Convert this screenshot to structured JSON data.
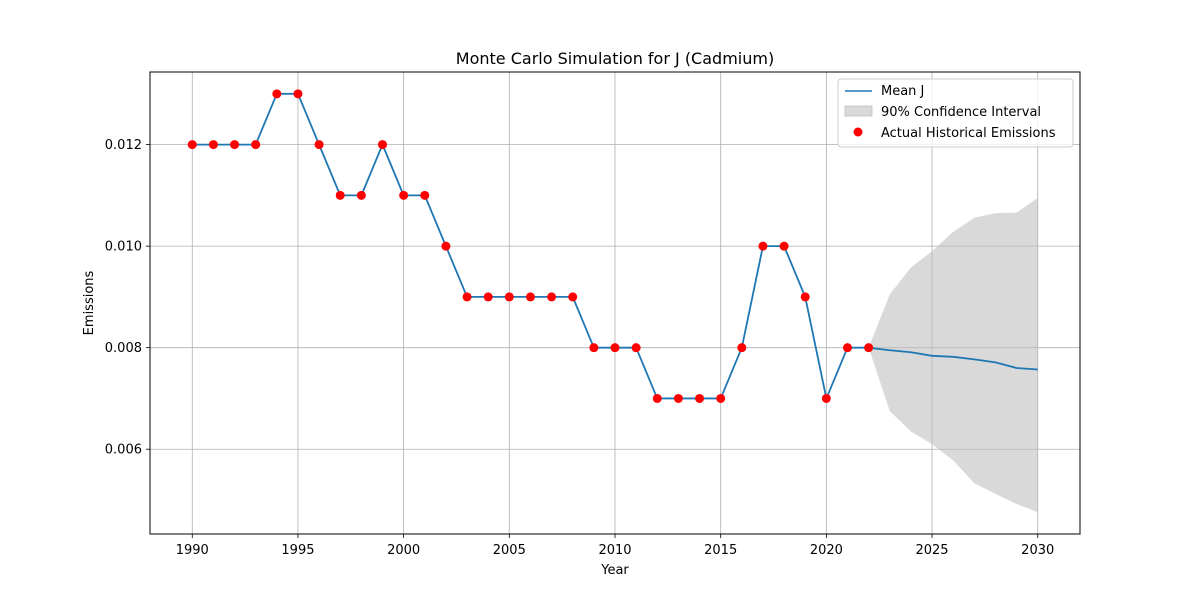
{
  "chart_data": {
    "type": "line",
    "title": "Monte Carlo Simulation for J (Cadmium)",
    "xlabel": "Year",
    "ylabel": "Emissions",
    "xlim": [
      1988,
      2032
    ],
    "ylim": [
      0.00433,
      0.01343
    ],
    "x_ticks": [
      1990,
      1995,
      2000,
      2005,
      2010,
      2015,
      2020,
      2025,
      2030
    ],
    "x_tick_labels": [
      "1990",
      "1995",
      "2000",
      "2005",
      "2010",
      "2015",
      "2020",
      "2025",
      "2030"
    ],
    "y_ticks": [
      0.006,
      0.008,
      0.01,
      0.012
    ],
    "y_tick_labels": [
      "0.006",
      "0.008",
      "0.010",
      "0.012"
    ],
    "grid": true,
    "legend_position": "top-right",
    "series": [
      {
        "name": "Mean J",
        "kind": "line",
        "color": "#1f77b4",
        "x": [
          1990,
          1991,
          1992,
          1993,
          1994,
          1995,
          1996,
          1997,
          1998,
          1999,
          2000,
          2001,
          2002,
          2003,
          2004,
          2005,
          2006,
          2007,
          2008,
          2009,
          2010,
          2011,
          2012,
          2013,
          2014,
          2015,
          2016,
          2017,
          2018,
          2019,
          2020,
          2021,
          2022,
          2023,
          2024,
          2025,
          2026,
          2027,
          2028,
          2029,
          2030
        ],
        "values": [
          0.012,
          0.012,
          0.012,
          0.012,
          0.013,
          0.013,
          0.012,
          0.011,
          0.011,
          0.012,
          0.011,
          0.011,
          0.01,
          0.009,
          0.009,
          0.009,
          0.009,
          0.009,
          0.009,
          0.008,
          0.008,
          0.008,
          0.007,
          0.007,
          0.007,
          0.007,
          0.008,
          0.01,
          0.01,
          0.009,
          0.007,
          0.008,
          0.008,
          0.00795,
          0.00791,
          0.00784,
          0.00782,
          0.00777,
          0.00771,
          0.0076,
          0.00757
        ]
      },
      {
        "name": "90% Confidence Interval",
        "kind": "band",
        "color": "#bfbfbf",
        "x": [
          2022,
          2023,
          2024,
          2025,
          2026,
          2027,
          2028,
          2029,
          2030
        ],
        "lower": [
          0.008,
          0.00675,
          0.00635,
          0.0061,
          0.00578,
          0.00533,
          0.00512,
          0.00492,
          0.00476
        ],
        "upper": [
          0.008,
          0.00905,
          0.00958,
          0.0099,
          0.01028,
          0.01056,
          0.01065,
          0.01066,
          0.01095
        ]
      },
      {
        "name": "Actual Historical Emissions",
        "kind": "scatter",
        "color": "#ff0000",
        "x": [
          1990,
          1991,
          1992,
          1993,
          1994,
          1995,
          1996,
          1997,
          1998,
          1999,
          2000,
          2001,
          2002,
          2003,
          2004,
          2005,
          2006,
          2007,
          2008,
          2009,
          2010,
          2011,
          2012,
          2013,
          2014,
          2015,
          2016,
          2017,
          2018,
          2019,
          2020,
          2021,
          2022
        ],
        "values": [
          0.012,
          0.012,
          0.012,
          0.012,
          0.013,
          0.013,
          0.012,
          0.011,
          0.011,
          0.012,
          0.011,
          0.011,
          0.01,
          0.009,
          0.009,
          0.009,
          0.009,
          0.009,
          0.009,
          0.008,
          0.008,
          0.008,
          0.007,
          0.007,
          0.007,
          0.007,
          0.008,
          0.01,
          0.01,
          0.009,
          0.007,
          0.008,
          0.008
        ]
      }
    ]
  }
}
